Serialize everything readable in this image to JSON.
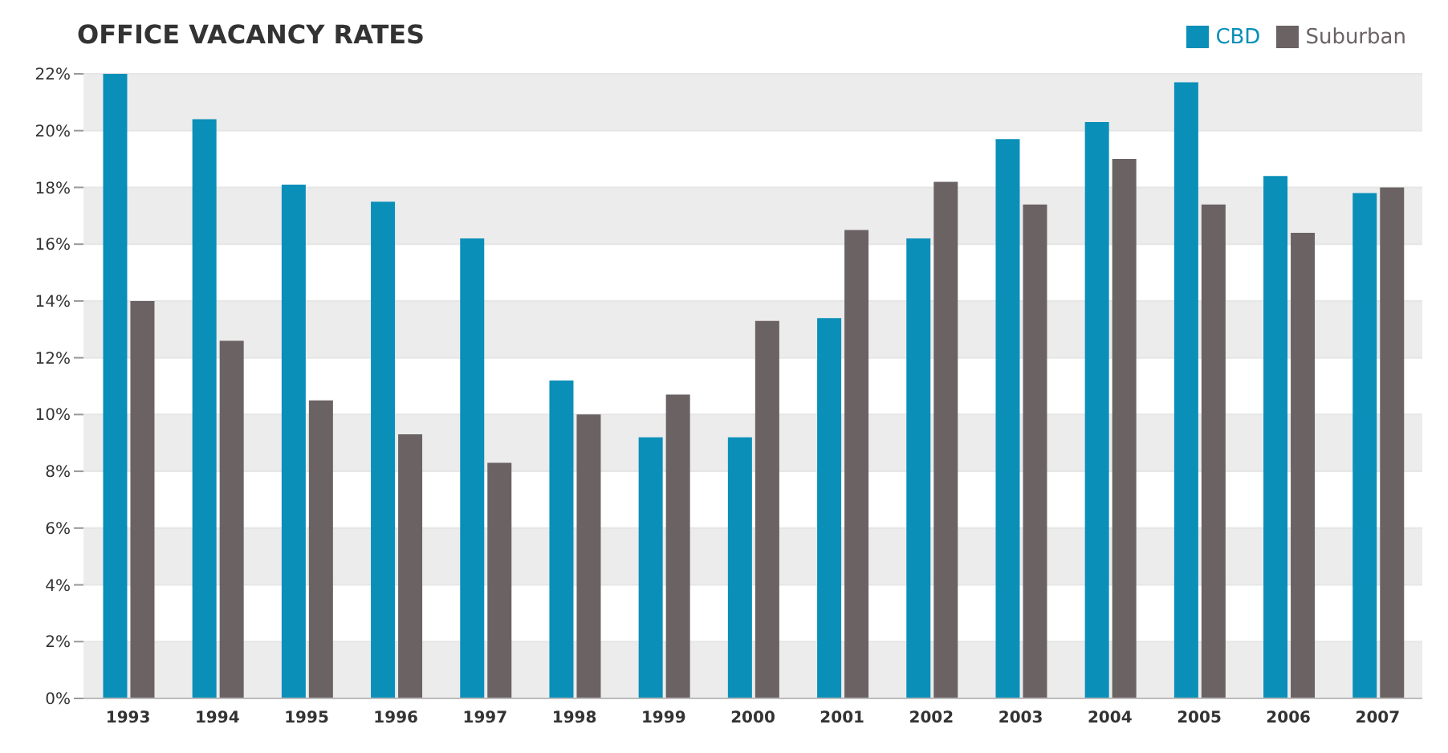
{
  "chart_data": {
    "type": "bar",
    "title": "OFFICE VACANCY RATES",
    "categories": [
      "1993",
      "1994",
      "1995",
      "1996",
      "1997",
      "1998",
      "1999",
      "2000",
      "2001",
      "2002",
      "2003",
      "2004",
      "2005",
      "2006",
      "2007"
    ],
    "series": [
      {
        "name": "CBD",
        "color": "#0a8fb8",
        "values": [
          22.0,
          20.4,
          18.1,
          17.5,
          16.2,
          11.2,
          9.2,
          9.2,
          13.4,
          16.2,
          19.7,
          20.3,
          21.7,
          18.4,
          17.8
        ]
      },
      {
        "name": "Suburban",
        "color": "#6b6264",
        "values": [
          14.0,
          12.6,
          10.5,
          9.3,
          8.3,
          10.0,
          10.7,
          13.3,
          16.5,
          18.2,
          17.4,
          19.0,
          17.4,
          16.4,
          18.0
        ]
      }
    ],
    "ylim": [
      0,
      22
    ],
    "yticks": [
      {
        "value": 0,
        "label": "0%"
      },
      {
        "value": 2,
        "label": "2%"
      },
      {
        "value": 4,
        "label": "4%"
      },
      {
        "value": 6,
        "label": "6%"
      },
      {
        "value": 8,
        "label": "8%"
      },
      {
        "value": 10,
        "label": "10%"
      },
      {
        "value": 12,
        "label": "12%"
      },
      {
        "value": 14,
        "label": "14%"
      },
      {
        "value": 16,
        "label": "16%"
      },
      {
        "value": 18,
        "label": "18%"
      },
      {
        "value": 20,
        "label": "20%"
      },
      {
        "value": 22,
        "label": "22%"
      }
    ],
    "grid": "y",
    "legend": "top right"
  }
}
